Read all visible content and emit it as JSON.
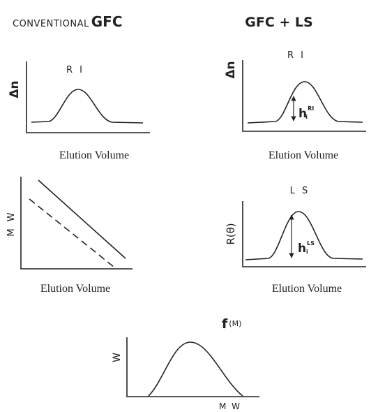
{
  "header": {
    "left": {
      "small": "CONVENTIONAL",
      "large": "GFC"
    },
    "right": "GFC + LS"
  },
  "panels": [
    {
      "title": "R I",
      "y_label": "Δn",
      "x_label": "Elution Volume"
    },
    {
      "y_label": "M W",
      "x_label": "Elution Volume"
    },
    {
      "title": "R I",
      "y_label": "Δn",
      "x_label": "Elution Volume",
      "height_label": {
        "base": "h",
        "sub": "i",
        "sup": "RI"
      }
    },
    {
      "title": "L S",
      "y_label": "R(θ)",
      "x_label": "Elution Volume",
      "height_label": {
        "base": "h",
        "sub": "i",
        "sup": "LS"
      }
    },
    {
      "y_label": "W",
      "x_label": "M W",
      "curve_label": {
        "base": "f",
        "arg": "(M)"
      }
    }
  ]
}
